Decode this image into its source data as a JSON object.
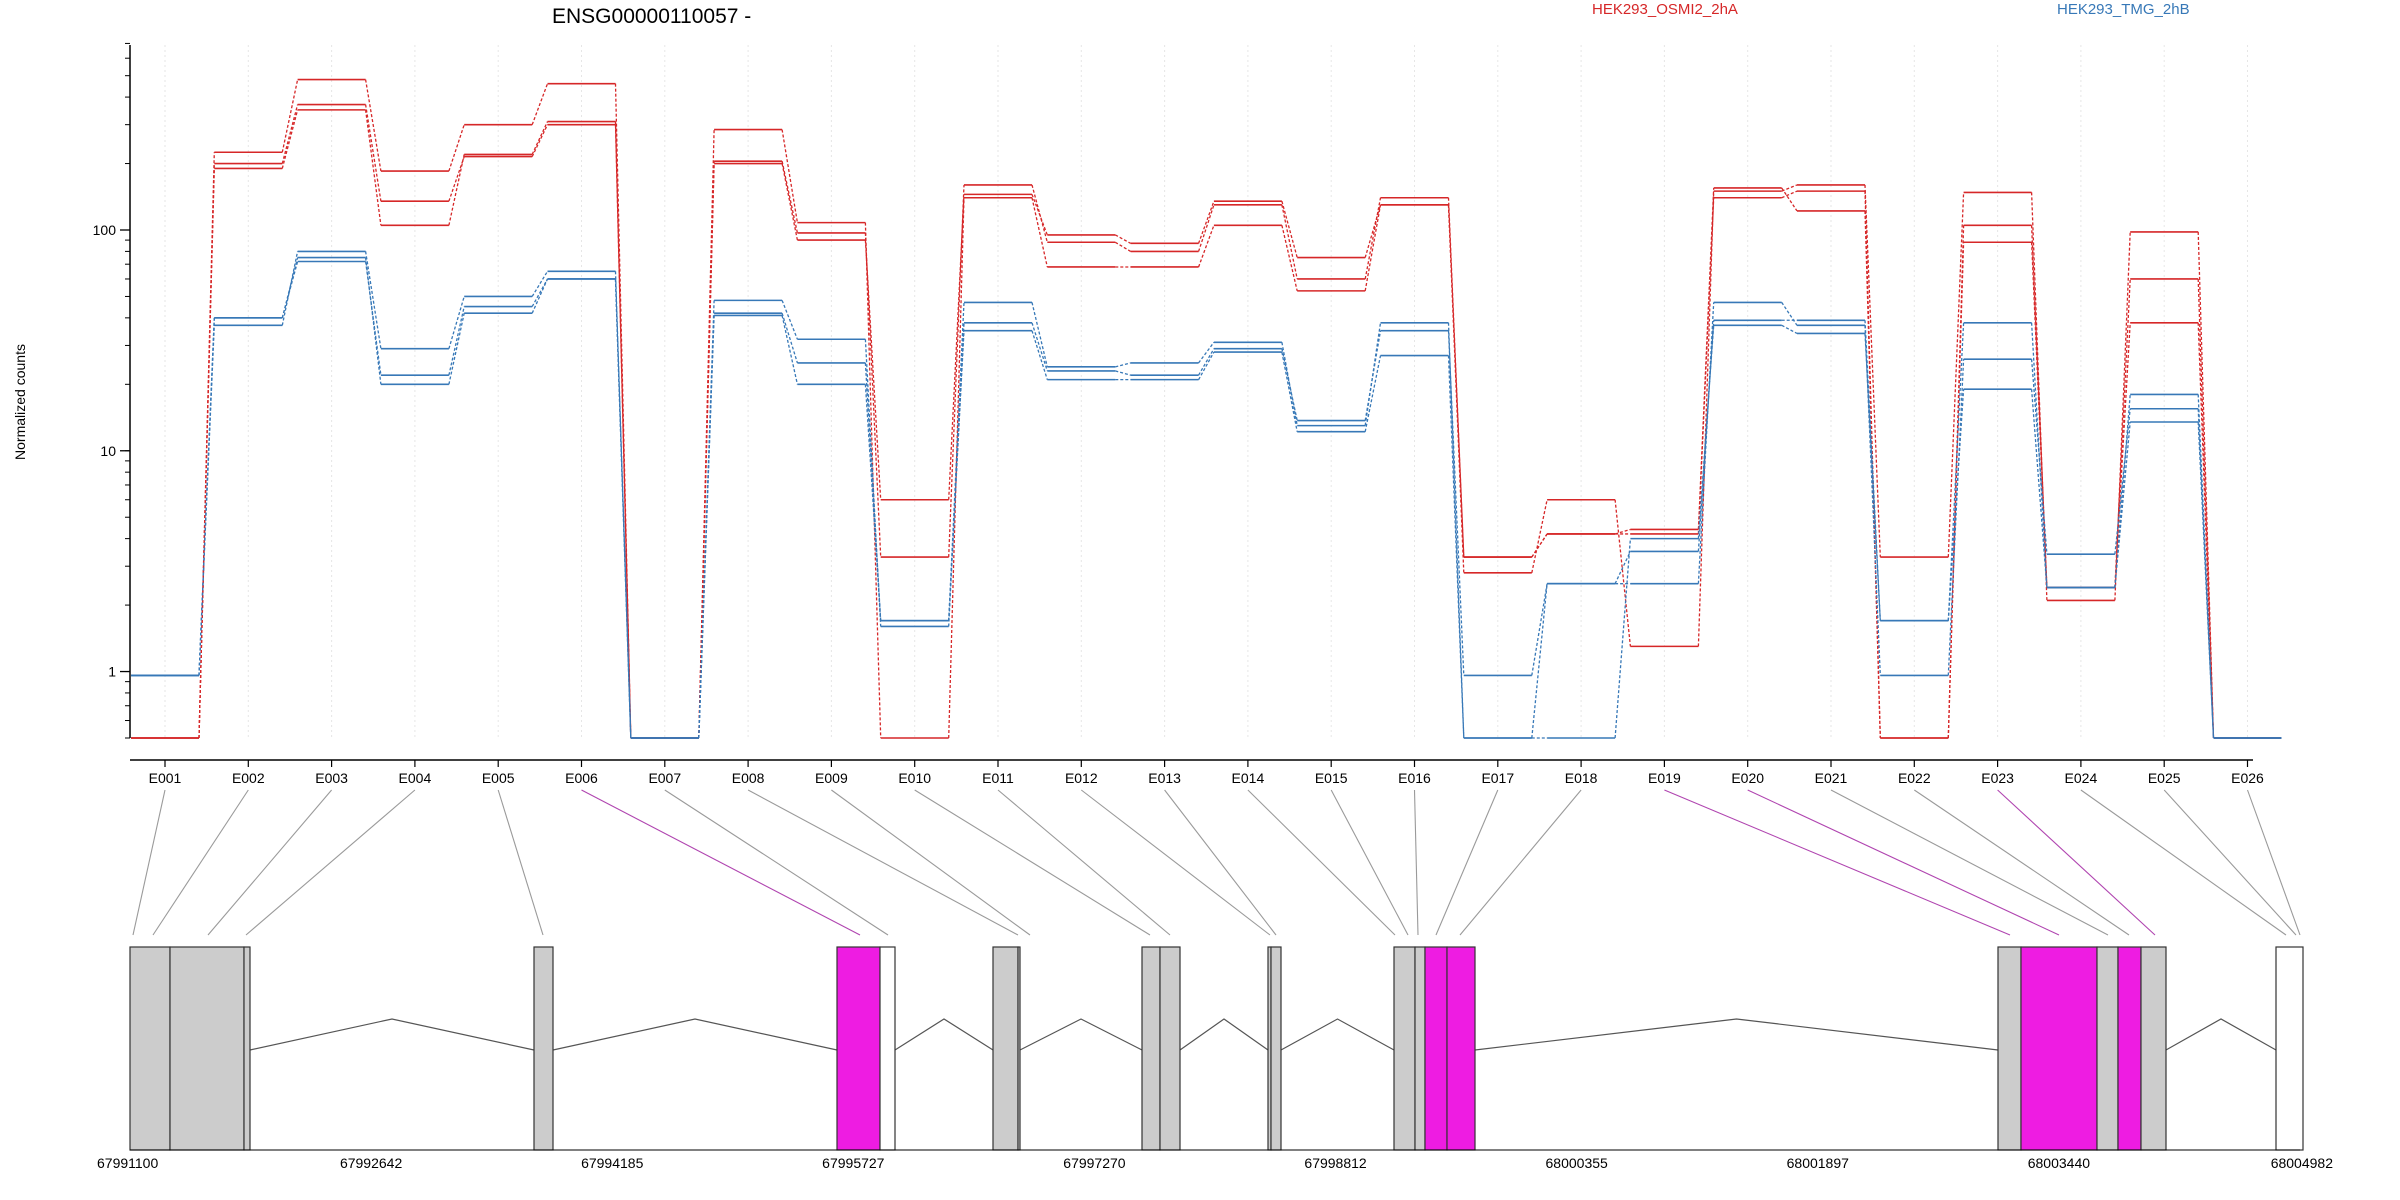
{
  "chart_data": {
    "type": "line",
    "title": "ENSG00000110057 -",
    "ylabel": "Normalized counts",
    "yscale": "log",
    "ylim": [
      0.5,
      700
    ],
    "yticks": [
      1,
      10,
      100
    ],
    "ytick_labels": [
      "1",
      "10",
      "100"
    ],
    "grid": "vertical dotted",
    "legend_position": "top",
    "categories": [
      "E001",
      "E002",
      "E003",
      "E004",
      "E005",
      "E006",
      "E007",
      "E008",
      "E009",
      "E010",
      "E011",
      "E012",
      "E013",
      "E014",
      "E015",
      "E016",
      "E017",
      "E018",
      "E019",
      "E020",
      "E021",
      "E022",
      "E023",
      "E024",
      "E025",
      "E026"
    ],
    "groups": [
      {
        "name": "HEK293_OSMI2_2hA",
        "color": "#d62728"
      },
      {
        "name": "HEK293_TMG_2hB",
        "color": "#3778b7"
      }
    ],
    "series": [
      {
        "group": 0,
        "values": [
          0.5,
          190,
          350,
          105,
          220,
          310,
          0.5,
          200,
          90,
          6,
          145,
          95,
          87,
          135,
          75,
          130,
          2.8,
          6,
          1.3,
          150,
          160,
          3.3,
          148,
          2.1,
          98,
          0.5
        ]
      },
      {
        "group": 0,
        "values": [
          0.5,
          200,
          370,
          135,
          215,
          300,
          0.5,
          205,
          97,
          3.3,
          160,
          88,
          80,
          130,
          60,
          140,
          3.3,
          4.2,
          4.2,
          140,
          150,
          0.5,
          105,
          2.4,
          60,
          0.5
        ]
      },
      {
        "group": 0,
        "values": [
          0.5,
          225,
          480,
          185,
          300,
          460,
          0.5,
          285,
          108,
          0.5,
          140,
          68,
          68,
          105,
          53,
          130,
          3.3,
          4.2,
          4.4,
          155,
          122,
          0.5,
          88,
          2.4,
          38,
          0.5
        ]
      },
      {
        "group": 1,
        "values": [
          0.96,
          40,
          72,
          22,
          45,
          60,
          0.5,
          42,
          25,
          1.7,
          47,
          24,
          25,
          31,
          13,
          38,
          0.5,
          2.5,
          3.5,
          39,
          39,
          1.7,
          38,
          2.4,
          18,
          0.5
        ]
      },
      {
        "group": 1,
        "values": [
          0.96,
          37,
          80,
          29,
          50,
          65,
          0.5,
          48,
          32,
          1.6,
          38,
          23,
          22,
          29,
          13.7,
          35,
          0.96,
          2.5,
          2.5,
          47,
          37,
          0.96,
          26,
          3.4,
          15.5,
          0.5
        ]
      },
      {
        "group": 1,
        "values": [
          0.96,
          40,
          75,
          20,
          42,
          60,
          0.5,
          41,
          20,
          1.7,
          35,
          21,
          21,
          28,
          12.2,
          27,
          0.5,
          0.5,
          4.0,
          37,
          34,
          1.7,
          19,
          2.4,
          13.5,
          0.5
        ]
      }
    ],
    "genomic_axis": {
      "tick_labels": [
        "67991100",
        "67992642",
        "67994185",
        "67995727",
        "67997270",
        "67998812",
        "68000355",
        "68001897",
        "68003440",
        "68004982"
      ]
    },
    "exon_colors": {
      "normal": "#cccccc",
      "highlighted": "#ee1ce2",
      "terminal": "#ffffff"
    }
  }
}
